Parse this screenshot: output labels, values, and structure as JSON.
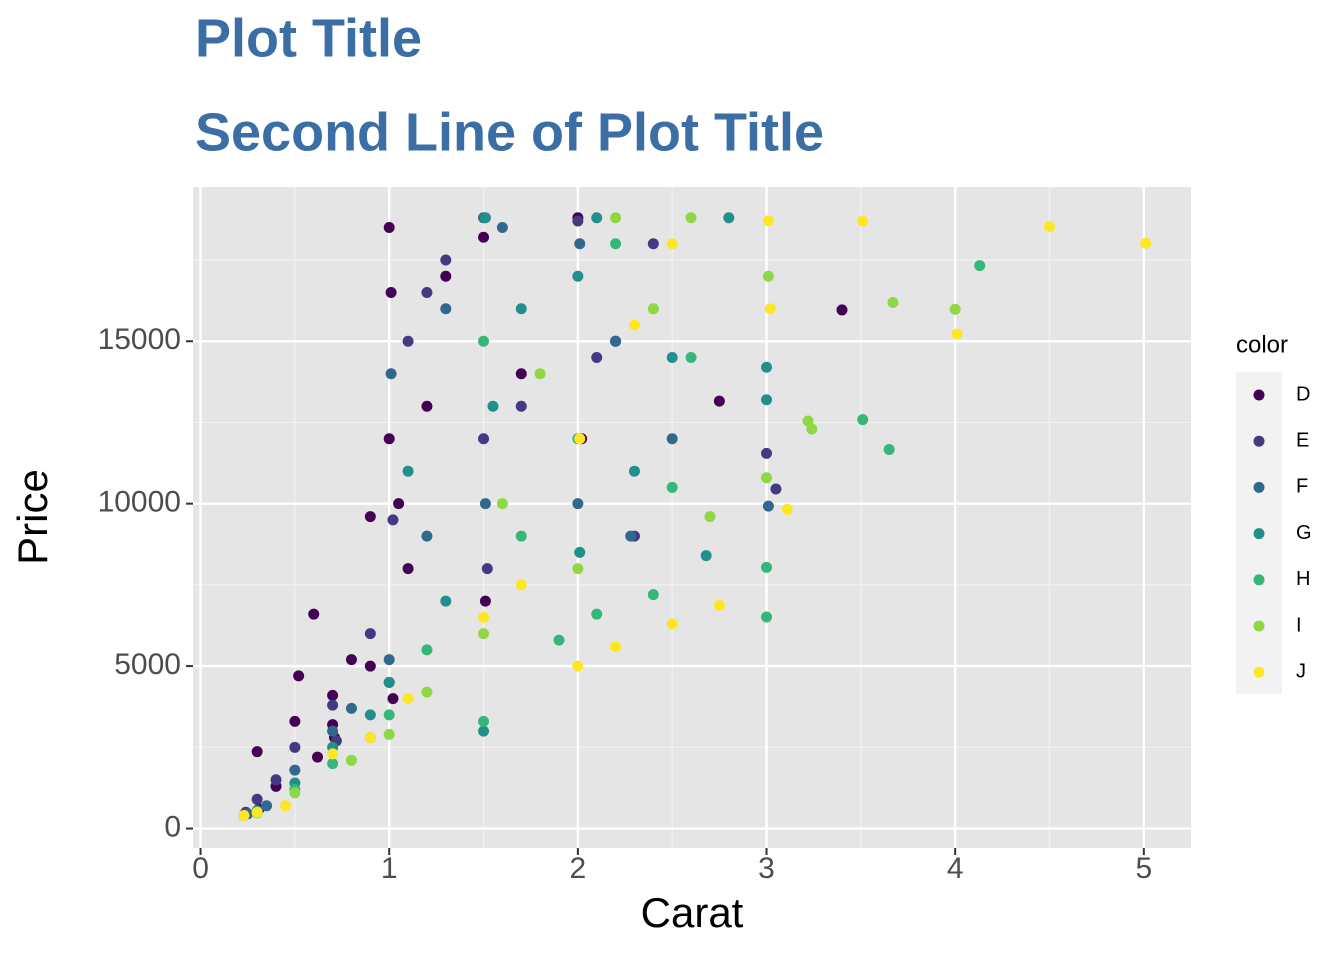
{
  "chart_data": {
    "type": "scatter",
    "title": [
      "Plot Title",
      "Second Line of Plot Title"
    ],
    "x_label": "Carat",
    "y_label": "Price",
    "legend_title": "color",
    "legend_position": "right",
    "xlim": [
      -0.04,
      5.25
    ],
    "ylim": [
      -599,
      19748
    ],
    "xticks": [
      0,
      1,
      2,
      3,
      4,
      5
    ],
    "yticks": [
      0,
      5000,
      10000,
      15000
    ],
    "xminor": [
      0.5,
      1.5,
      2.5,
      3.5,
      4.5
    ],
    "yminor": [
      2500,
      7500,
      12500,
      17500
    ],
    "grid": true,
    "series": [
      {
        "name": "D",
        "color": "#440154",
        "x": [
          0.23,
          0.3,
          0.31,
          0.4,
          0.5,
          0.52,
          0.6,
          0.62,
          0.7,
          0.7,
          0.71,
          0.8,
          0.9,
          0.9,
          1.0,
          1.0,
          1.01,
          1.02,
          1.05,
          1.1,
          1.2,
          1.3,
          1.5,
          1.51,
          1.7,
          2.0,
          2.02,
          2.2,
          2.75,
          3.4
        ],
        "values": [
          400,
          2366,
          600,
          1300,
          3300,
          4700,
          6600,
          2200,
          3200,
          4100,
          2800,
          5200,
          9600,
          5000,
          18500,
          12000,
          16500,
          4000,
          10000,
          8000,
          13000,
          17000,
          18200,
          7000,
          14000,
          18800,
          12000,
          15000,
          13156,
          15964
        ]
      },
      {
        "name": "E",
        "color": "#443A83",
        "x": [
          0.24,
          0.3,
          0.4,
          0.5,
          0.7,
          0.72,
          0.9,
          1.0,
          1.02,
          1.1,
          1.2,
          1.3,
          1.5,
          1.52,
          1.7,
          2.0,
          2.1,
          2.3,
          2.4,
          3.0,
          3.05
        ],
        "values": [
          500,
          900,
          1500,
          2500,
          3800,
          2700,
          6000,
          4500,
          9500,
          15000,
          16500,
          17500,
          12000,
          8000,
          13000,
          18700,
          14500,
          9000,
          18000,
          11548,
          10453
        ]
      },
      {
        "name": "F",
        "color": "#31688E",
        "x": [
          0.25,
          0.35,
          0.5,
          0.7,
          0.8,
          1.0,
          1.01,
          1.2,
          1.3,
          1.5,
          1.51,
          1.6,
          2.0,
          2.01,
          2.2,
          2.28,
          2.5,
          3.01
        ],
        "values": [
          450,
          700,
          1800,
          3000,
          3700,
          5200,
          14000,
          9000,
          16000,
          18800,
          10000,
          18500,
          10000,
          18000,
          15000,
          9000,
          12000,
          9925
        ]
      },
      {
        "name": "G",
        "color": "#21908C",
        "x": [
          0.3,
          0.5,
          0.7,
          0.9,
          1.0,
          1.1,
          1.3,
          1.5,
          1.51,
          1.55,
          1.7,
          2.0,
          2.01,
          2.1,
          2.3,
          2.5,
          2.68,
          2.8,
          3.0,
          3.0
        ],
        "values": [
          550,
          1400,
          2500,
          3500,
          4500,
          11000,
          7000,
          3000,
          18800,
          13000,
          16000,
          17000,
          8500,
          18800,
          11000,
          14500,
          8400,
          18800,
          14200,
          13200
        ]
      },
      {
        "name": "H",
        "color": "#35B779",
        "x": [
          0.3,
          0.5,
          0.7,
          0.9,
          1.0,
          1.2,
          1.5,
          1.5,
          1.7,
          1.9,
          2.0,
          2.1,
          2.2,
          2.4,
          2.5,
          2.6,
          3.0,
          3.0,
          3.51,
          3.65,
          4.13
        ],
        "values": [
          500,
          1200,
          2000,
          2800,
          3500,
          5500,
          3300,
          15000,
          9000,
          5800,
          12000,
          6600,
          18000,
          7200,
          10500,
          14500,
          6512,
          8040,
          12587,
          11668,
          17329
        ]
      },
      {
        "name": "I",
        "color": "#8FD744",
        "x": [
          0.3,
          0.5,
          0.8,
          1.0,
          1.2,
          1.5,
          1.6,
          1.8,
          2.0,
          2.2,
          2.4,
          2.6,
          2.7,
          3.0,
          3.01,
          3.22,
          3.24,
          3.67,
          4.0
        ],
        "values": [
          480,
          1100,
          2100,
          2900,
          4200,
          6000,
          10000,
          14000,
          8000,
          18800,
          16000,
          18800,
          9600,
          10800,
          17000,
          12545,
          12300,
          16193,
          15984
        ]
      },
      {
        "name": "J",
        "color": "#FDE725",
        "x": [
          0.23,
          0.3,
          0.45,
          0.7,
          0.9,
          1.1,
          1.5,
          1.7,
          2.0,
          2.01,
          2.2,
          2.3,
          2.5,
          2.5,
          2.75,
          3.01,
          3.02,
          3.11,
          3.51,
          4.01,
          4.5,
          5.01
        ],
        "values": [
          400,
          500,
          700,
          2300,
          2800,
          4000,
          6500,
          7500,
          5000,
          12000,
          5600,
          15500,
          6300,
          18000,
          6870,
          18710,
          16000,
          9823,
          18701,
          15223,
          18531,
          18018
        ]
      }
    ]
  }
}
